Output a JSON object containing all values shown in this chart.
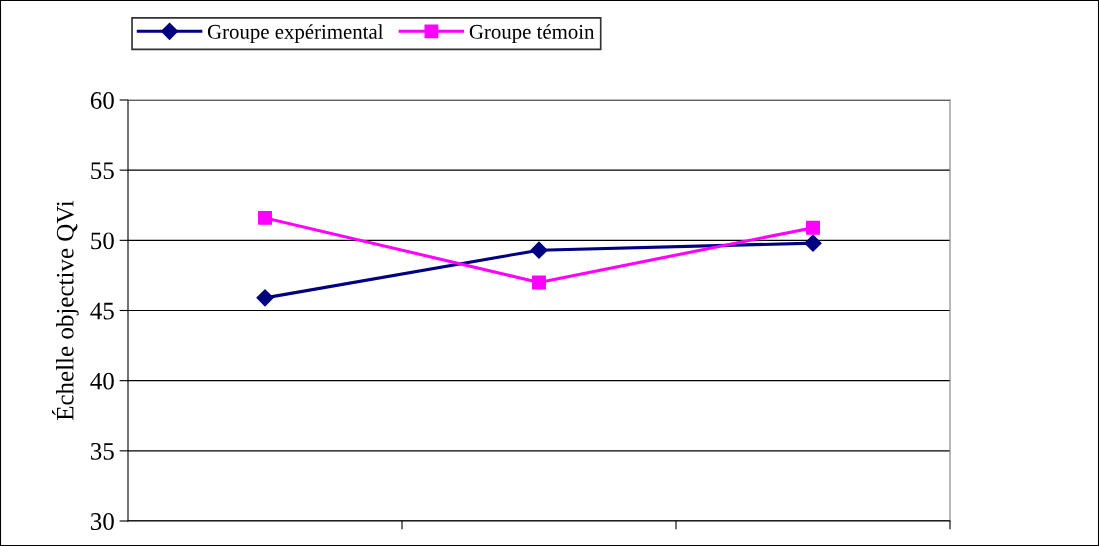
{
  "chart_data": {
    "type": "line",
    "ylabel": "Échelle objective QVi",
    "categories": [
      null,
      null,
      null
    ],
    "series": [
      {
        "name": "Groupe expérimental",
        "color": "#000080",
        "marker": "diamond",
        "values": [
          45.9,
          49.3,
          49.8
        ]
      },
      {
        "name": "Groupe témoin",
        "color": "#ff00ff",
        "marker": "square",
        "values": [
          51.6,
          47.0,
          50.9
        ]
      }
    ],
    "ylim": [
      30,
      60
    ],
    "yticks": [
      30,
      35,
      40,
      45,
      50,
      55,
      60
    ],
    "grid": "y",
    "legend": "top"
  }
}
